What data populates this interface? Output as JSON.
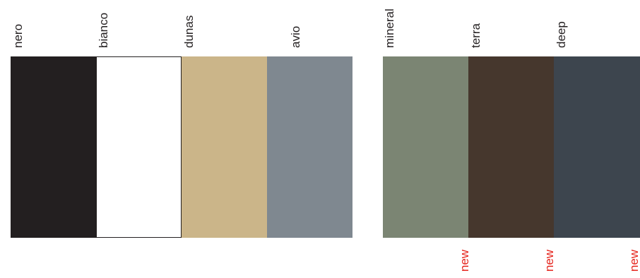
{
  "palettes": [
    {
      "swatches": [
        {
          "name": "nero",
          "color": "#231f20"
        },
        {
          "name": "bianco",
          "color": "#ffffff"
        },
        {
          "name": "dunas",
          "color": "#cbb589"
        },
        {
          "name": "avio",
          "color": "#7f8890"
        }
      ]
    },
    {
      "swatches": [
        {
          "name": "mineral",
          "color": "#7b8573"
        },
        {
          "name": "terra",
          "color": "#46372d"
        },
        {
          "name": "deep",
          "color": "#3d454e"
        }
      ]
    }
  ],
  "new_tags": [
    {
      "label": "new"
    },
    {
      "label": "new"
    },
    {
      "label": "new"
    }
  ],
  "colors": {
    "label_text": "#231f20",
    "new_tag": "#e5231b",
    "background": "#ffffff"
  }
}
